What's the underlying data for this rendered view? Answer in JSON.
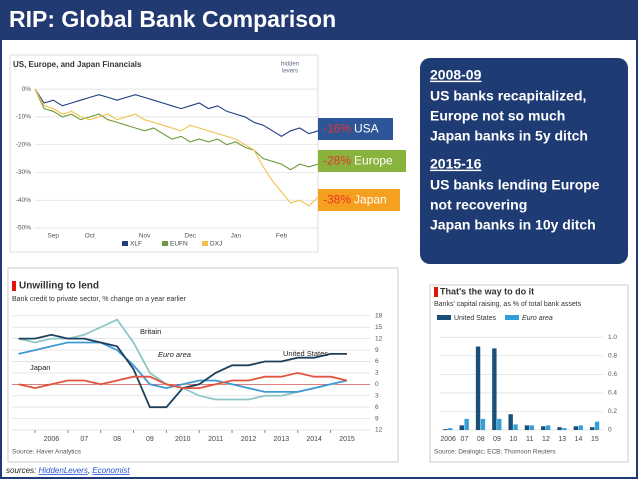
{
  "title": "RIP: Global Bank Comparison",
  "callout": {
    "sections": [
      {
        "heading": "2008-09",
        "lines": [
          "US banks recapitalized,",
          "Europe not so much",
          "Japan banks in 5y ditch"
        ]
      },
      {
        "heading": "2015-16",
        "lines": [
          "US banks lending Europe",
          "not recovering",
          "Japan banks in 10y ditch"
        ]
      }
    ]
  },
  "sources": [
    {
      "text": "sources: "
    },
    {
      "text": "HiddenLevers",
      "link": true
    },
    {
      "text": ", "
    },
    {
      "text": "Economist",
      "link": true
    }
  ],
  "chart_data": [
    {
      "type": "line",
      "title": "US, Europe, and Japan Financials",
      "logo": [
        "hidden",
        "levers"
      ],
      "categories": [
        null,
        null,
        "Sep",
        null,
        null,
        null,
        "Oct",
        null,
        null,
        null,
        null,
        null,
        "Nov",
        null,
        null,
        null,
        null,
        "Dec",
        null,
        null,
        null,
        null,
        "Jan",
        null,
        null,
        null,
        null,
        "Feb",
        null,
        null,
        null,
        null
      ],
      "series": [
        {
          "name": "XLF",
          "color": "#1f3f7f",
          "values": [
            0,
            -5,
            -4,
            -6,
            -5,
            -4,
            -3,
            -2,
            -3,
            -4,
            -3,
            -2,
            -3,
            -4,
            -5,
            -6,
            -7,
            -6,
            -5,
            -7,
            -6,
            -8,
            -9,
            -10,
            -12,
            -13,
            -15,
            -17,
            -15,
            -14,
            -16,
            -15
          ]
        },
        {
          "name": "EUFN",
          "color": "#6f9a3b",
          "values": [
            0,
            -7,
            -8,
            -10,
            -9,
            -11,
            -10,
            -9,
            -11,
            -12,
            -13,
            -14,
            -15,
            -14,
            -16,
            -18,
            -17,
            -19,
            -18,
            -19,
            -18,
            -20,
            -19,
            -21,
            -22,
            -25,
            -26,
            -27,
            -29,
            -27,
            -28,
            -27
          ]
        },
        {
          "name": "DXJ",
          "color": "#f2c14e",
          "values": [
            0,
            -6,
            -7,
            -9,
            -8,
            -10,
            -11,
            -10,
            -9,
            -11,
            -10,
            -9,
            -11,
            -12,
            -13,
            -14,
            -15,
            -13,
            -14,
            -15,
            -16,
            -17,
            -18,
            -20,
            -22,
            -28,
            -33,
            -37,
            -41,
            -40,
            -42,
            -39
          ]
        }
      ],
      "ylim": [
        -50,
        4
      ],
      "yticks": [
        {
          "value": 0,
          "label": "0%"
        },
        {
          "value": -10,
          "label": "-10%"
        },
        {
          "value": -20,
          "label": "-20%"
        },
        {
          "value": -30,
          "label": "-30%"
        },
        {
          "value": -40,
          "label": "-40%"
        },
        {
          "value": -50,
          "label": "-50%"
        }
      ],
      "grid": true,
      "legend": "bottom",
      "annotations": [
        {
          "change": "-16%",
          "label": "USA",
          "color": "#2e5597"
        },
        {
          "change": "-28%",
          "label": "Europe",
          "color": "#8ab33d"
        },
        {
          "change": "-38%",
          "label": "Japan",
          "color": "#f5a01e"
        }
      ]
    },
    {
      "type": "line",
      "title": "Unwilling to lend",
      "subtitle": "Bank credit to private sector, % change on a year earlier",
      "source": "Source: Haver Analytics",
      "x": [
        2005.5,
        2006,
        2006.5,
        2007,
        2007.5,
        2008,
        2008.5,
        2009,
        2009.5,
        2010,
        2010.5,
        2011,
        2011.5,
        2012,
        2012.5,
        2013,
        2013.5,
        2014,
        2014.5,
        2015,
        2015.5
      ],
      "xlim": [
        2005.3,
        2016.2
      ],
      "xticks": [
        2006,
        {
          "value": 2007,
          "label": "07"
        },
        {
          "value": 2008,
          "label": "08"
        },
        {
          "value": 2009,
          "label": "09"
        },
        2010,
        2011,
        2012,
        2013,
        2014,
        2015
      ],
      "ylim": [
        -12,
        19
      ],
      "yticks": [
        18,
        15,
        12,
        9,
        6,
        3,
        0,
        {
          "value": -3,
          "label": "3"
        },
        {
          "value": -6,
          "label": "6"
        },
        {
          "value": -9,
          "label": "9"
        },
        {
          "value": -12,
          "label": "12"
        }
      ],
      "grid": true,
      "y_axis": "right",
      "series": [
        {
          "name": "Britain",
          "color": "#8dc8c6",
          "values": [
            12,
            11,
            12,
            12,
            13,
            15,
            17,
            11,
            3,
            0,
            -1,
            -3,
            -4,
            -4,
            -4,
            -3,
            -3,
            -2,
            -1,
            0,
            1
          ]
        },
        {
          "name": "Euro area",
          "color": "#3f9ad6",
          "values": [
            8,
            9,
            10,
            11,
            11,
            11,
            9,
            5,
            0,
            -1,
            0,
            1,
            1,
            0,
            -1,
            -2,
            -2,
            -2,
            -1,
            0,
            1
          ]
        },
        {
          "name": "United States",
          "color": "#1c3f5c",
          "values": [
            12,
            12,
            13,
            12,
            12,
            11,
            10,
            4,
            -6,
            -6,
            -1,
            0,
            3,
            5,
            5,
            6,
            6,
            7,
            7,
            8,
            8
          ]
        },
        {
          "name": "Japan",
          "color": "#e0553f",
          "values": [
            0,
            -1,
            0,
            1,
            1,
            0,
            1,
            2,
            2,
            0,
            -1,
            -1,
            0,
            1,
            1,
            2,
            2,
            3,
            2,
            2,
            1
          ]
        }
      ]
    },
    {
      "type": "bar",
      "title": "That's the way to do it",
      "subtitle": "Banks' capital raising, as % of total bank assets",
      "source": "Source: Dealogic; ECB; Thomson Reuters",
      "categories": [
        "2006",
        "07",
        "08",
        "09",
        "10",
        "11",
        "12",
        "13",
        "14",
        "15"
      ],
      "series": [
        {
          "name": "United States",
          "color": "#1a4f7a",
          "values": [
            0.01,
            0.05,
            0.9,
            0.88,
            0.17,
            0.05,
            0.04,
            0.03,
            0.04,
            0.03
          ]
        },
        {
          "name": "Euro area",
          "color": "#34a0d8",
          "values": [
            0.02,
            0.12,
            0.12,
            0.12,
            0.06,
            0.05,
            0.05,
            0.02,
            0.05,
            0.09
          ]
        }
      ],
      "ylim": [
        0,
        1.1
      ],
      "yticks": [
        0,
        0.2,
        0.4,
        0.6,
        0.8,
        {
          "value": 1,
          "label": "1.0"
        }
      ],
      "grid": true,
      "y_axis": "right",
      "legend": "top-left"
    }
  ]
}
